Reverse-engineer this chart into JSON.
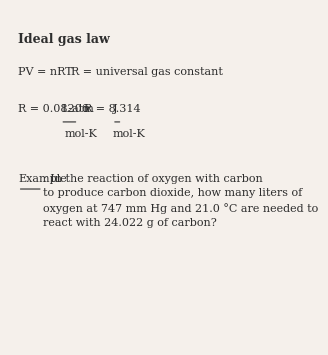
{
  "bg_color": "#f5f0eb",
  "text_color": "#2d2d2d",
  "title": "Ideal gas law",
  "line1_left": "PV = nRT",
  "line1_right": "R = universal gas constant",
  "line2_left_prefix": "R = 0.08206 ",
  "line2_left_fraction_num": "L-atm",
  "line2_left_fraction_den": "mol-K",
  "line2_right_prefix": "R = 8.314 ",
  "line2_right_fraction_num": "J",
  "line2_right_fraction_den": "mol-K",
  "example_label": "Example",
  "example_text": ": In the reaction of oxygen with carbon\nto produce carbon dioxide, how many liters of\noxygen at 747 mm Hg and 21.0 °C are needed to\nreact with 24.022 g of carbon?",
  "font_size_title": 9,
  "font_size_body": 8,
  "fig_width": 2.64,
  "fig_height": 3.41
}
